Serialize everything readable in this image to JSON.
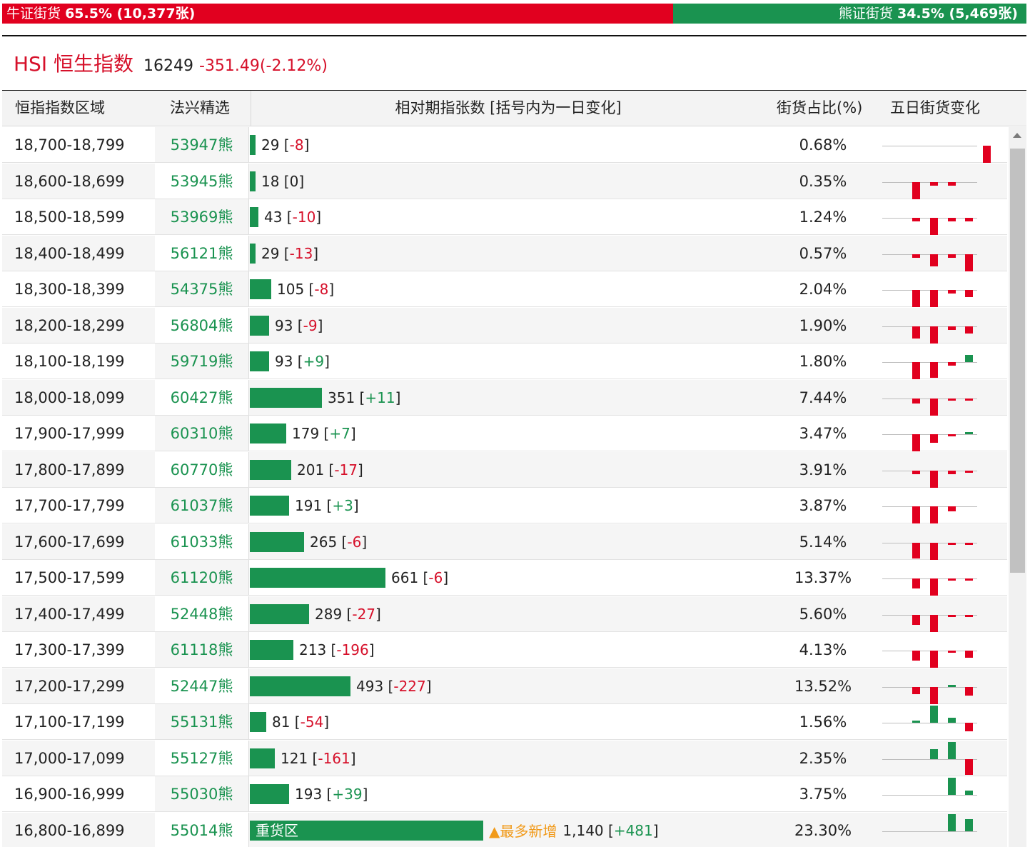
{
  "summary": {
    "bull_label": "牛证街货",
    "bull_stats": "65.5% (10,377张)",
    "bull_pct": 65.5,
    "bear_label": "熊证街货",
    "bear_stats": "34.5% (5,469张)",
    "bear_pct": 34.5
  },
  "index": {
    "code": "HSI 恒生指数",
    "price": "16249",
    "change": "-351.49(-2.12%)"
  },
  "headers": {
    "range": "恒指指数区域",
    "pick": "法兴精选",
    "change": "相对期指张数 [括号内为一日变化]",
    "pct": "街货占比(%)",
    "five_day": "五日街货变化"
  },
  "colors": {
    "bull_red": "#e1001f",
    "bear_green": "#1a9350",
    "highlight_orange": "#f19a1a"
  },
  "max_count": 1140,
  "rows": [
    {
      "range": "18,700-18,799",
      "pick": "53947熊",
      "count": "29",
      "delta": "-8",
      "pct": "0.68%",
      "spark": [
        0,
        0,
        0,
        0,
        -1
      ]
    },
    {
      "range": "18,600-18,699",
      "pick": "53945熊",
      "count": "18",
      "delta": "0",
      "pct": "0.35%",
      "spark": [
        -1,
        -0.2,
        -0.2,
        0,
        0
      ]
    },
    {
      "range": "18,500-18,599",
      "pick": "53969熊",
      "count": "43",
      "delta": "-10",
      "pct": "1.24%",
      "spark": [
        -0.2,
        -1,
        -0.2,
        -0.2,
        0
      ]
    },
    {
      "range": "18,400-18,499",
      "pick": "56121熊",
      "count": "29",
      "delta": "-13",
      "pct": "0.57%",
      "spark": [
        -0.2,
        -0.7,
        -0.2,
        -1,
        0
      ]
    },
    {
      "range": "18,300-18,399",
      "pick": "54375熊",
      "count": "105",
      "delta": "-8",
      "pct": "2.04%",
      "spark": [
        -1,
        -1,
        -0.2,
        -0.4,
        0
      ]
    },
    {
      "range": "18,200-18,299",
      "pick": "56804熊",
      "count": "93",
      "delta": "-9",
      "pct": "1.90%",
      "spark": [
        -0.7,
        -1,
        -0.2,
        -0.4,
        0
      ]
    },
    {
      "range": "18,100-18,199",
      "pick": "59719熊",
      "count": "93",
      "delta": "+9",
      "pct": "1.80%",
      "spark": [
        -1,
        -0.9,
        -0.2,
        0.4,
        0
      ]
    },
    {
      "range": "18,000-18,099",
      "pick": "60427熊",
      "count": "351",
      "delta": "+11",
      "pct": "7.44%",
      "spark": [
        -0.3,
        -1,
        -0.1,
        -0.1,
        0
      ]
    },
    {
      "range": "17,900-17,999",
      "pick": "60310熊",
      "count": "179",
      "delta": "+7",
      "pct": "3.47%",
      "spark": [
        -1,
        -0.5,
        -0.1,
        0.1,
        0
      ]
    },
    {
      "range": "17,800-17,899",
      "pick": "60770熊",
      "count": "201",
      "delta": "-17",
      "pct": "3.91%",
      "spark": [
        -0.2,
        -1,
        -0.2,
        -0.1,
        0
      ]
    },
    {
      "range": "17,700-17,799",
      "pick": "61037熊",
      "count": "191",
      "delta": "+3",
      "pct": "3.87%",
      "spark": [
        -1,
        -1,
        -0.3,
        0,
        0
      ]
    },
    {
      "range": "17,600-17,699",
      "pick": "61033熊",
      "count": "265",
      "delta": "-6",
      "pct": "5.14%",
      "spark": [
        -0.9,
        -1,
        -0.1,
        -0.1,
        0
      ]
    },
    {
      "range": "17,500-17,599",
      "pick": "61120熊",
      "count": "661",
      "delta": "-6",
      "pct": "13.37%",
      "spark": [
        -0.6,
        -1,
        -0.1,
        -0.1,
        0
      ]
    },
    {
      "range": "17,400-17,499",
      "pick": "52448熊",
      "count": "289",
      "delta": "-27",
      "pct": "5.60%",
      "spark": [
        -0.6,
        -1,
        -0.1,
        -0.1,
        0
      ]
    },
    {
      "range": "17,300-17,399",
      "pick": "61118熊",
      "count": "213",
      "delta": "-196",
      "pct": "4.13%",
      "spark": [
        -0.6,
        -1,
        -0.1,
        -0.4,
        0
      ]
    },
    {
      "range": "17,200-17,299",
      "pick": "52447熊",
      "count": "493",
      "delta": "-227",
      "pct": "13.52%",
      "spark": [
        -0.4,
        -1,
        0.1,
        -0.5,
        0
      ]
    },
    {
      "range": "17,100-17,199",
      "pick": "55131熊",
      "count": "81",
      "delta": "-54",
      "pct": "1.56%",
      "spark": [
        0.1,
        1,
        0.3,
        -0.5,
        0
      ]
    },
    {
      "range": "17,000-17,099",
      "pick": "55127熊",
      "count": "121",
      "delta": "-161",
      "pct": "2.35%",
      "spark": [
        0,
        0.6,
        1,
        -0.9,
        0
      ]
    },
    {
      "range": "16,900-16,999",
      "pick": "55030熊",
      "count": "193",
      "delta": "+39",
      "pct": "3.75%",
      "spark": [
        0,
        0,
        1,
        0.25,
        0
      ]
    },
    {
      "range": "16,800-16,899",
      "pick": "55014熊",
      "count": "1,140",
      "delta": "+481",
      "pct": "23.30%",
      "heavy": "重货区",
      "most": "最多新增",
      "spark": [
        0,
        0,
        1,
        0.7,
        0
      ]
    }
  ]
}
